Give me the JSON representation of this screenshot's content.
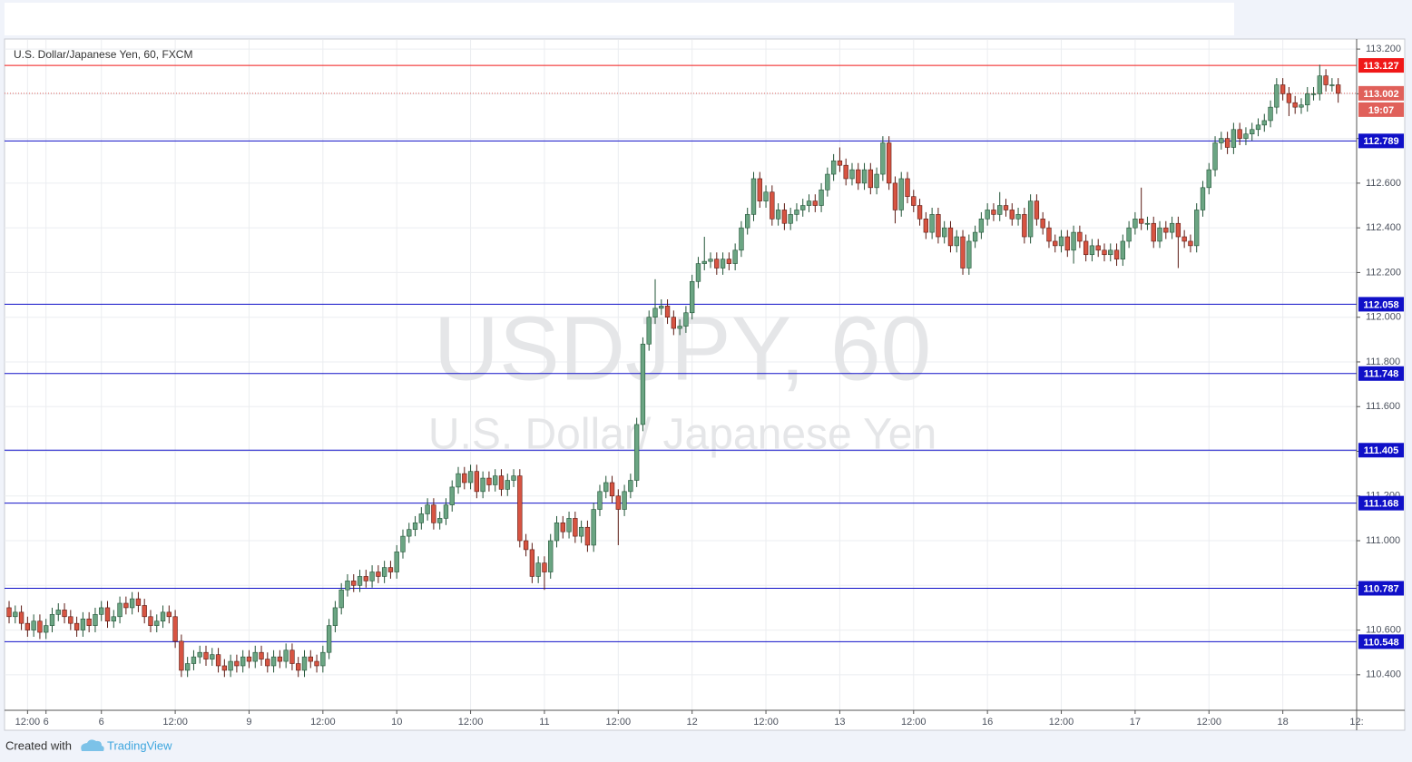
{
  "chart_data": {
    "type": "candlestick",
    "title": "U.S. Dollar/Japanese Yen, 60, FXCM",
    "watermark": "USDJPY, 60",
    "watermark_subtitle": "U.S. Dollar/ Japanese Yen",
    "up_color": "#6ba583",
    "up_border": "#225437",
    "down_color": "#d75442",
    "down_border": "#5b1a13",
    "grid": true,
    "xlim": [
      -0.74,
      219
    ],
    "xticks": [
      {
        "value": 3,
        "label": "12:00"
      },
      6,
      {
        "value": 15,
        "label": "6"
      },
      {
        "value": 27,
        "label": "12:00"
      },
      {
        "value": 39,
        "label": "9"
      },
      {
        "value": 51,
        "label": "12:00"
      },
      {
        "value": 63,
        "label": "10"
      },
      {
        "value": 75,
        "label": "12:00"
      },
      {
        "value": 87,
        "label": "11"
      },
      {
        "value": 99,
        "label": "12:00"
      },
      {
        "value": 111,
        "label": "12"
      },
      {
        "value": 123,
        "label": "12:00"
      },
      {
        "value": 135,
        "label": "13"
      },
      {
        "value": 147,
        "label": "12:00"
      },
      {
        "value": 159,
        "label": "16"
      },
      {
        "value": 171,
        "label": "12:00"
      },
      {
        "value": 183,
        "label": "17"
      },
      {
        "value": 195,
        "label": "12:00"
      },
      {
        "value": 207,
        "label": "18"
      },
      {
        "value": 219,
        "label": "12:"
      }
    ],
    "ylim": [
      110.241,
      113.241
    ],
    "yticks": [
      {
        "value": 110.4,
        "label": "110.400"
      },
      {
        "value": 110.6,
        "label": "110.600"
      },
      {
        "value": 110.8,
        "label": "110.800"
      },
      {
        "value": 111.0,
        "label": "111.000"
      },
      {
        "value": 111.2,
        "label": "111.200"
      },
      {
        "value": 111.4,
        "label": "111.400"
      },
      {
        "value": 111.6,
        "label": "111.600"
      },
      {
        "value": 111.8,
        "label": "111.800"
      },
      {
        "value": 112.0,
        "label": "112.000"
      },
      {
        "value": 112.2,
        "label": "112.200"
      },
      {
        "value": 112.4,
        "label": "112.400"
      },
      {
        "value": 112.6,
        "label": "112.600"
      },
      {
        "value": 112.8,
        "label": "112.800"
      },
      {
        "value": 113.0,
        "label": "113.000"
      },
      {
        "value": 113.2,
        "label": "113.200"
      }
    ],
    "levels": [
      {
        "value": 113.127,
        "color": "#f01818"
      },
      {
        "value": 112.789,
        "color": "#1010c8"
      },
      {
        "value": 112.058,
        "color": "#1010c8"
      },
      {
        "value": 111.748,
        "color": "#1010c8"
      },
      {
        "value": 111.405,
        "color": "#1010c8"
      },
      {
        "value": 111.168,
        "color": "#1010c8"
      },
      {
        "value": 110.787,
        "color": "#1010c8"
      },
      {
        "value": 110.548,
        "color": "#1010c8"
      }
    ],
    "last_price": {
      "value": 113.002,
      "countdown": "19:07",
      "color": "#e0605a"
    },
    "open": [
      110.7,
      110.66,
      110.68,
      110.63,
      110.6,
      110.64,
      110.59,
      110.62,
      110.67,
      110.69,
      110.66,
      110.63,
      110.6,
      110.65,
      110.62,
      110.67,
      110.7,
      110.64,
      110.66,
      110.72,
      110.7,
      110.74,
      110.71,
      110.66,
      110.62,
      110.64,
      110.68,
      110.66,
      110.55,
      110.42,
      110.45,
      110.48,
      110.5,
      110.47,
      110.49,
      110.44,
      110.42,
      110.46,
      110.44,
      110.48,
      110.46,
      110.5,
      110.47,
      110.44,
      110.48,
      110.46,
      110.51,
      110.45,
      110.42,
      110.48,
      110.46,
      110.44,
      110.5,
      110.62,
      110.7,
      110.78,
      110.82,
      110.8,
      110.84,
      110.82,
      110.86,
      110.84,
      110.88,
      110.86,
      110.95,
      111.02,
      111.05,
      111.08,
      111.12,
      111.16,
      111.08,
      111.1,
      111.16,
      111.24,
      111.3,
      111.26,
      111.31,
      111.22,
      111.28,
      111.25,
      111.29,
      111.23,
      111.27,
      111.29,
      111.0,
      110.96,
      110.84,
      110.9,
      110.86,
      111.0,
      111.08,
      111.04,
      111.1,
      111.02,
      111.06,
      110.98,
      111.14,
      111.22,
      111.26,
      111.2,
      111.14,
      111.22,
      111.27,
      111.52,
      111.88,
      112.0,
      112.04,
      112.05,
      112.0,
      111.95,
      111.96,
      112.02,
      112.16,
      112.24,
      112.25,
      112.26,
      112.22,
      112.26,
      112.24,
      112.3,
      112.4,
      112.46,
      112.62,
      112.52,
      112.56,
      112.44,
      112.48,
      112.42,
      112.46,
      112.48,
      112.5,
      112.52,
      112.5,
      112.57,
      112.64,
      112.7,
      112.68,
      112.62,
      112.66,
      112.6,
      112.66,
      112.58,
      112.64,
      112.78,
      112.6,
      112.48,
      112.62,
      112.54,
      112.5,
      112.44,
      112.38,
      112.46,
      112.36,
      112.4,
      112.32,
      112.36,
      112.22,
      112.34,
      112.38,
      112.44,
      112.48,
      112.46,
      112.5,
      112.48,
      112.44,
      112.46,
      112.36,
      112.52,
      112.44,
      112.4,
      112.34,
      112.32,
      112.36,
      112.3,
      112.38,
      112.34,
      112.28,
      112.32,
      112.3,
      112.28,
      112.3,
      112.26,
      112.34,
      112.4,
      112.44,
      112.42,
      112.42,
      112.34,
      112.4,
      112.38,
      112.42,
      112.36,
      112.34,
      112.32,
      112.48,
      112.58,
      112.66,
      112.78,
      112.8,
      112.76,
      112.84,
      112.8,
      112.82,
      112.84,
      112.86,
      112.88,
      112.94,
      113.04,
      113.0,
      112.96,
      112.94,
      112.95,
      113.0,
      113.0,
      113.08,
      113.04,
      113.04
    ],
    "high": [
      110.73,
      110.71,
      110.71,
      110.66,
      110.67,
      110.67,
      110.65,
      110.7,
      110.72,
      110.72,
      110.69,
      110.66,
      110.68,
      110.68,
      110.7,
      110.73,
      110.73,
      110.69,
      110.75,
      110.75,
      110.77,
      110.77,
      110.74,
      110.69,
      110.67,
      110.71,
      110.71,
      110.69,
      110.58,
      110.48,
      110.51,
      110.53,
      110.53,
      110.52,
      110.52,
      110.47,
      110.49,
      110.49,
      110.51,
      110.51,
      110.53,
      110.53,
      110.5,
      110.51,
      110.51,
      110.54,
      110.54,
      110.48,
      110.51,
      110.51,
      110.49,
      110.53,
      110.65,
      110.73,
      110.81,
      110.85,
      110.85,
      110.87,
      110.87,
      110.89,
      110.89,
      110.91,
      110.91,
      110.98,
      111.05,
      111.08,
      111.11,
      111.15,
      111.19,
      111.19,
      111.13,
      111.19,
      111.27,
      111.33,
      111.33,
      111.34,
      111.34,
      111.31,
      111.31,
      111.32,
      111.32,
      111.3,
      111.32,
      111.32,
      111.03,
      110.99,
      110.93,
      110.93,
      111.03,
      111.11,
      111.11,
      111.13,
      111.13,
      111.09,
      111.09,
      111.17,
      111.25,
      111.29,
      111.29,
      111.23,
      111.25,
      111.3,
      111.55,
      111.91,
      112.03,
      112.17,
      112.08,
      112.08,
      112.03,
      111.99,
      112.05,
      112.19,
      112.27,
      112.36,
      112.29,
      112.29,
      112.29,
      112.29,
      112.33,
      112.43,
      112.49,
      112.65,
      112.65,
      112.59,
      112.59,
      112.51,
      112.51,
      112.49,
      112.51,
      112.53,
      112.55,
      112.55,
      112.6,
      112.67,
      112.73,
      112.76,
      112.71,
      112.69,
      112.69,
      112.69,
      112.69,
      112.67,
      112.81,
      112.81,
      112.63,
      112.65,
      112.65,
      112.57,
      112.53,
      112.47,
      112.49,
      112.49,
      112.43,
      112.43,
      112.39,
      112.39,
      112.37,
      112.41,
      112.47,
      112.51,
      112.51,
      112.56,
      112.53,
      112.51,
      112.49,
      112.49,
      112.55,
      112.55,
      112.47,
      112.43,
      112.37,
      112.39,
      112.39,
      112.41,
      112.41,
      112.37,
      112.35,
      112.35,
      112.33,
      112.33,
      112.33,
      112.37,
      112.43,
      112.47,
      112.58,
      112.45,
      112.45,
      112.43,
      112.43,
      112.45,
      112.45,
      112.39,
      112.37,
      112.51,
      112.61,
      112.69,
      112.81,
      112.83,
      112.83,
      112.87,
      112.87,
      112.85,
      112.87,
      112.89,
      112.91,
      112.97,
      113.07,
      113.07,
      113.03,
      112.99,
      112.98,
      113.03,
      113.03,
      113.13,
      113.11,
      113.07,
      113.07
    ],
    "low": [
      110.63,
      110.63,
      110.6,
      110.57,
      110.57,
      110.56,
      110.56,
      110.59,
      110.64,
      110.63,
      110.6,
      110.57,
      110.57,
      110.59,
      110.59,
      110.64,
      110.61,
      110.61,
      110.63,
      110.67,
      110.67,
      110.68,
      110.63,
      110.59,
      110.59,
      110.61,
      110.63,
      110.52,
      110.39,
      110.39,
      110.42,
      110.45,
      110.44,
      110.44,
      110.41,
      110.39,
      110.39,
      110.41,
      110.41,
      110.43,
      110.43,
      110.44,
      110.41,
      110.41,
      110.43,
      110.43,
      110.42,
      110.39,
      110.39,
      110.43,
      110.41,
      110.41,
      110.47,
      110.59,
      110.67,
      110.75,
      110.77,
      110.77,
      110.79,
      110.79,
      110.81,
      110.81,
      110.83,
      110.83,
      110.92,
      110.99,
      111.02,
      111.05,
      111.09,
      111.05,
      111.05,
      111.07,
      111.13,
      111.21,
      111.23,
      111.23,
      111.19,
      111.19,
      111.22,
      111.22,
      111.2,
      111.2,
      111.24,
      110.97,
      110.93,
      110.81,
      110.81,
      110.78,
      110.83,
      110.97,
      111.01,
      111.01,
      110.99,
      110.99,
      110.95,
      110.95,
      111.11,
      111.19,
      111.17,
      110.98,
      111.11,
      111.19,
      111.24,
      111.49,
      111.85,
      111.97,
      112.01,
      111.97,
      111.92,
      111.92,
      111.93,
      111.99,
      112.13,
      112.21,
      112.22,
      112.19,
      112.19,
      112.21,
      112.21,
      112.27,
      112.37,
      112.43,
      112.49,
      112.49,
      112.41,
      112.41,
      112.39,
      112.39,
      112.43,
      112.45,
      112.47,
      112.47,
      112.47,
      112.54,
      112.61,
      112.65,
      112.59,
      112.59,
      112.57,
      112.57,
      112.55,
      112.55,
      112.61,
      112.57,
      112.42,
      112.45,
      112.51,
      112.47,
      112.41,
      112.35,
      112.35,
      112.33,
      112.33,
      112.29,
      112.29,
      112.19,
      112.19,
      112.31,
      112.35,
      112.41,
      112.43,
      112.43,
      112.45,
      112.41,
      112.41,
      112.33,
      112.33,
      112.41,
      112.37,
      112.31,
      112.29,
      112.29,
      112.27,
      112.24,
      112.31,
      112.25,
      112.25,
      112.27,
      112.25,
      112.25,
      112.23,
      112.23,
      112.31,
      112.37,
      112.39,
      112.39,
      112.31,
      112.31,
      112.35,
      112.35,
      112.22,
      112.31,
      112.29,
      112.29,
      112.45,
      112.55,
      112.63,
      112.75,
      112.73,
      112.73,
      112.77,
      112.77,
      112.79,
      112.81,
      112.83,
      112.85,
      112.91,
      112.97,
      112.9,
      112.91,
      112.91,
      112.92,
      112.97,
      112.97,
      113.01,
      113.01,
      112.96
    ],
    "close": [
      110.66,
      110.68,
      110.63,
      110.6,
      110.64,
      110.59,
      110.62,
      110.67,
      110.69,
      110.66,
      110.63,
      110.6,
      110.65,
      110.62,
      110.67,
      110.7,
      110.64,
      110.66,
      110.72,
      110.7,
      110.74,
      110.71,
      110.66,
      110.62,
      110.64,
      110.68,
      110.66,
      110.55,
      110.42,
      110.45,
      110.48,
      110.5,
      110.47,
      110.49,
      110.44,
      110.42,
      110.46,
      110.44,
      110.48,
      110.46,
      110.5,
      110.47,
      110.44,
      110.48,
      110.46,
      110.51,
      110.45,
      110.42,
      110.48,
      110.46,
      110.44,
      110.5,
      110.62,
      110.7,
      110.78,
      110.82,
      110.8,
      110.84,
      110.82,
      110.86,
      110.84,
      110.88,
      110.86,
      110.95,
      111.02,
      111.05,
      111.08,
      111.12,
      111.16,
      111.08,
      111.1,
      111.16,
      111.24,
      111.3,
      111.26,
      111.31,
      111.22,
      111.28,
      111.25,
      111.29,
      111.23,
      111.27,
      111.29,
      111.0,
      110.96,
      110.84,
      110.9,
      110.86,
      111.0,
      111.08,
      111.04,
      111.1,
      111.02,
      111.06,
      110.98,
      111.14,
      111.22,
      111.26,
      111.2,
      111.14,
      111.22,
      111.27,
      111.52,
      111.88,
      112.0,
      112.04,
      112.05,
      112.0,
      111.95,
      111.96,
      112.02,
      112.16,
      112.24,
      112.25,
      112.26,
      112.22,
      112.26,
      112.24,
      112.3,
      112.4,
      112.46,
      112.62,
      112.52,
      112.56,
      112.44,
      112.48,
      112.42,
      112.46,
      112.48,
      112.5,
      112.52,
      112.5,
      112.57,
      112.64,
      112.7,
      112.68,
      112.62,
      112.66,
      112.6,
      112.66,
      112.58,
      112.64,
      112.78,
      112.6,
      112.48,
      112.62,
      112.54,
      112.5,
      112.44,
      112.38,
      112.46,
      112.36,
      112.4,
      112.32,
      112.36,
      112.22,
      112.34,
      112.38,
      112.44,
      112.48,
      112.46,
      112.5,
      112.48,
      112.44,
      112.46,
      112.36,
      112.52,
      112.44,
      112.4,
      112.34,
      112.32,
      112.36,
      112.3,
      112.38,
      112.34,
      112.28,
      112.32,
      112.3,
      112.28,
      112.3,
      112.26,
      112.34,
      112.4,
      112.44,
      112.42,
      112.42,
      112.34,
      112.4,
      112.38,
      112.42,
      112.36,
      112.34,
      112.32,
      112.48,
      112.58,
      112.66,
      112.78,
      112.8,
      112.76,
      112.84,
      112.8,
      112.82,
      112.84,
      112.86,
      112.88,
      112.94,
      113.04,
      113.0,
      112.96,
      112.94,
      112.95,
      113.0,
      113.0,
      113.08,
      113.04,
      113.04,
      113.002
    ]
  },
  "footer": {
    "text": "Created with",
    "brand": "TradingView"
  }
}
